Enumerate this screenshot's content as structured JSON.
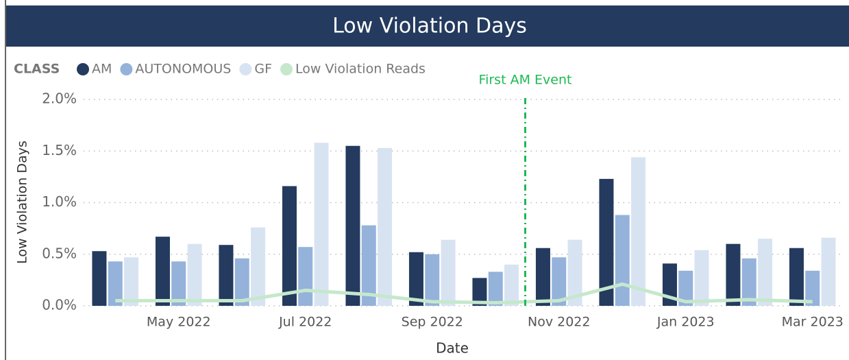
{
  "chart_data": {
    "type": "bar",
    "title": "Low Violation Days",
    "x_label": "Date",
    "y_label": "Low Violation Days",
    "legend_title": "CLASS",
    "categories": [
      null,
      "May 2022",
      null,
      "Jul 2022",
      null,
      "Sep 2022",
      null,
      "Nov 2022",
      null,
      "Jan 2023",
      null,
      "Mar 2023"
    ],
    "series": [
      {
        "name": "AM",
        "type": "bar",
        "color": "#243a5e",
        "values": [
          0.53,
          0.67,
          0.59,
          1.16,
          1.55,
          0.52,
          0.27,
          0.56,
          1.23,
          0.41,
          0.6,
          0.56
        ]
      },
      {
        "name": "AUTONOMOUS",
        "type": "bar",
        "color": "#94b2da",
        "values": [
          0.43,
          0.43,
          0.46,
          0.57,
          0.78,
          0.5,
          0.33,
          0.47,
          0.88,
          0.34,
          0.46,
          0.34
        ]
      },
      {
        "name": "GF",
        "type": "bar",
        "color": "#d8e3f2",
        "values": [
          0.47,
          0.6,
          0.76,
          1.58,
          1.53,
          0.64,
          0.4,
          0.64,
          1.44,
          0.54,
          0.65,
          0.66
        ]
      },
      {
        "name": "Low Violation Reads",
        "type": "line",
        "color": "#c5e8cc",
        "values": [
          0.05,
          0.05,
          0.05,
          0.15,
          0.11,
          0.04,
          0.03,
          0.05,
          0.21,
          0.04,
          0.06,
          0.04
        ]
      }
    ],
    "ylim": [
      0,
      2.0
    ],
    "yticks": [
      {
        "value": 0,
        "label": "0.0%"
      },
      {
        "value": 0.5,
        "label": "0.5%"
      },
      {
        "value": 1.0,
        "label": "1.0%"
      },
      {
        "value": 1.5,
        "label": "1.5%"
      },
      {
        "value": 2.0,
        "label": "2.0%"
      }
    ],
    "grid": true,
    "legend": "top-left",
    "annotation": {
      "text": "First AM Event",
      "color": "#1db954"
    }
  }
}
